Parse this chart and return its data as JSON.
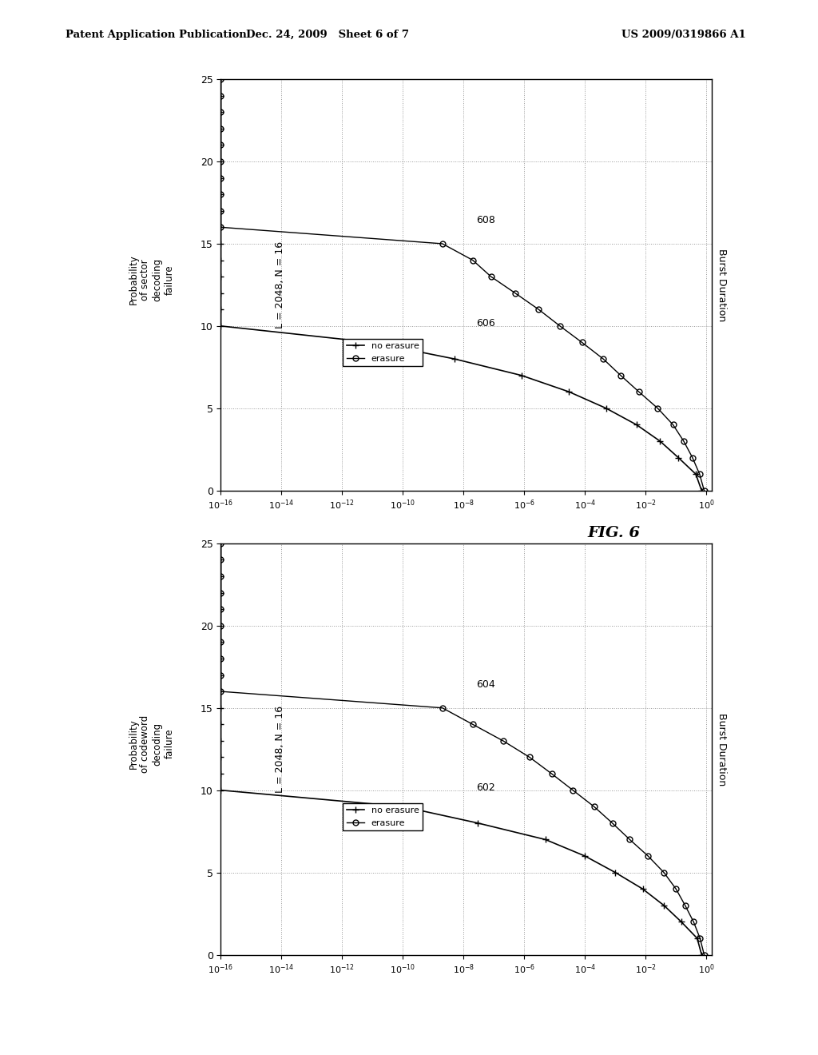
{
  "header_left": "Patent Application Publication",
  "header_mid": "Dec. 24, 2009   Sheet 6 of 7",
  "header_right": "US 2009/0319866 A1",
  "fig_label": "FIG. 6",
  "subplot_top": {
    "title": "L = 2048, N = 16",
    "ylabel_text": "Burst Duration",
    "xlabel_lines": [
      "Probability",
      "of sector",
      "decoding",
      "failure"
    ],
    "label_no_erasure": "606",
    "label_erasure": "608",
    "legend_no_erasure": "no erasure",
    "legend_erasure": "erasure",
    "no_erasure_burst": [
      0,
      1,
      2,
      3,
      4,
      5,
      6,
      7,
      8,
      9,
      10,
      11,
      12,
      13,
      14,
      15,
      16,
      17,
      18,
      19,
      20,
      21,
      22,
      23,
      24,
      25
    ],
    "no_erasure_prob": [
      0.7,
      0.45,
      0.12,
      0.03,
      0.005,
      0.0005,
      3e-05,
      8e-07,
      5e-09,
      1e-11,
      1e-16,
      1e-16,
      1e-16,
      1e-16,
      1e-16,
      1e-16,
      1e-16,
      1e-16,
      1e-16,
      1e-16,
      1e-16,
      1e-16,
      1e-16,
      1e-16,
      1e-16,
      1e-16
    ],
    "erasure_burst": [
      0,
      1,
      2,
      3,
      4,
      5,
      6,
      7,
      8,
      9,
      10,
      11,
      12,
      13,
      14,
      15,
      16,
      17,
      18,
      19,
      20,
      21,
      22,
      23,
      24,
      25
    ],
    "erasure_prob": [
      0.85,
      0.6,
      0.35,
      0.18,
      0.08,
      0.025,
      0.006,
      0.0015,
      0.0004,
      8e-05,
      1.5e-05,
      3e-06,
      5e-07,
      8e-08,
      2e-08,
      2e-09,
      1e-16,
      1e-16,
      1e-16,
      1e-16,
      1e-16,
      1e-16,
      1e-16,
      1e-16,
      1e-16,
      1e-16
    ]
  },
  "subplot_bottom": {
    "title": "L = 2048, N = 16",
    "ylabel_text": "Burst Duration",
    "xlabel_lines": [
      "Probability",
      "of codeword",
      "decoding",
      "failure"
    ],
    "label_no_erasure": "602",
    "label_erasure": "604",
    "legend_no_erasure": "no erasure",
    "legend_erasure": "erasure",
    "no_erasure_burst": [
      0,
      1,
      2,
      3,
      4,
      5,
      6,
      7,
      8,
      9,
      10,
      11,
      12,
      13,
      14,
      15,
      16,
      17,
      18,
      19,
      20,
      21,
      22,
      23,
      24,
      25
    ],
    "no_erasure_prob": [
      0.7,
      0.5,
      0.15,
      0.04,
      0.008,
      0.001,
      0.0001,
      5e-06,
      3e-08,
      1e-10,
      1e-16,
      1e-16,
      1e-16,
      1e-16,
      1e-16,
      1e-16,
      1e-16,
      1e-16,
      1e-16,
      1e-16,
      1e-16,
      1e-16,
      1e-16,
      1e-16,
      1e-16,
      1e-16
    ],
    "erasure_burst": [
      0,
      1,
      2,
      3,
      4,
      5,
      6,
      7,
      8,
      9,
      10,
      11,
      12,
      13,
      14,
      15,
      16,
      17,
      18,
      19,
      20,
      21,
      22,
      23,
      24,
      25
    ],
    "erasure_prob": [
      0.85,
      0.62,
      0.38,
      0.2,
      0.1,
      0.04,
      0.012,
      0.003,
      0.0008,
      0.0002,
      4e-05,
      8e-06,
      1.5e-06,
      2e-07,
      2e-08,
      2e-09,
      1e-16,
      1e-16,
      1e-16,
      1e-16,
      1e-16,
      1e-16,
      1e-16,
      1e-16,
      1e-16,
      1e-16
    ]
  },
  "background_color": "#ffffff",
  "grid_color": "#999999",
  "grid_style": ":"
}
